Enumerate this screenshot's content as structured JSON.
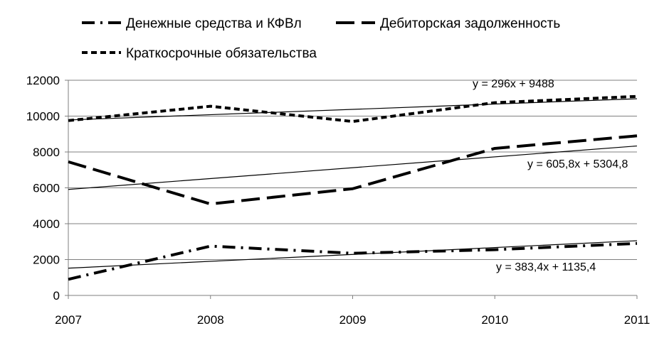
{
  "chart_data": {
    "type": "line",
    "categories": [
      "2007",
      "2008",
      "2009",
      "2010",
      "2011"
    ],
    "ylim": [
      0,
      12000
    ],
    "yticks": [
      0,
      2000,
      4000,
      6000,
      8000,
      10000,
      12000
    ],
    "grid": "horizontal",
    "legend_position": "top",
    "series": [
      {
        "name": "Денежные средства и КФВл",
        "values": [
          900,
          2750,
          2350,
          2550,
          2900
        ],
        "style": "dash-dot",
        "trendline": {
          "slope": 383.4,
          "intercept": 1135.4,
          "label": "y = 383,4x + 1135,4"
        }
      },
      {
        "name": "Дебиторская задолженность",
        "values": [
          7450,
          5100,
          5950,
          8200,
          8900
        ],
        "style": "long-dash",
        "trendline": {
          "slope": 605.8,
          "intercept": 5304.8,
          "label": "y = 605,8x + 5304,8"
        }
      },
      {
        "name": "Краткосрочные обязательства",
        "values": [
          9750,
          10550,
          9700,
          10750,
          11100
        ],
        "style": "short-dash",
        "trendline": {
          "slope": 296,
          "intercept": 9488,
          "label": "y = 296x + 9488"
        }
      }
    ]
  },
  "colors": {
    "line": "#000000",
    "grid": "#7f7f7f",
    "background": "#ffffff"
  }
}
